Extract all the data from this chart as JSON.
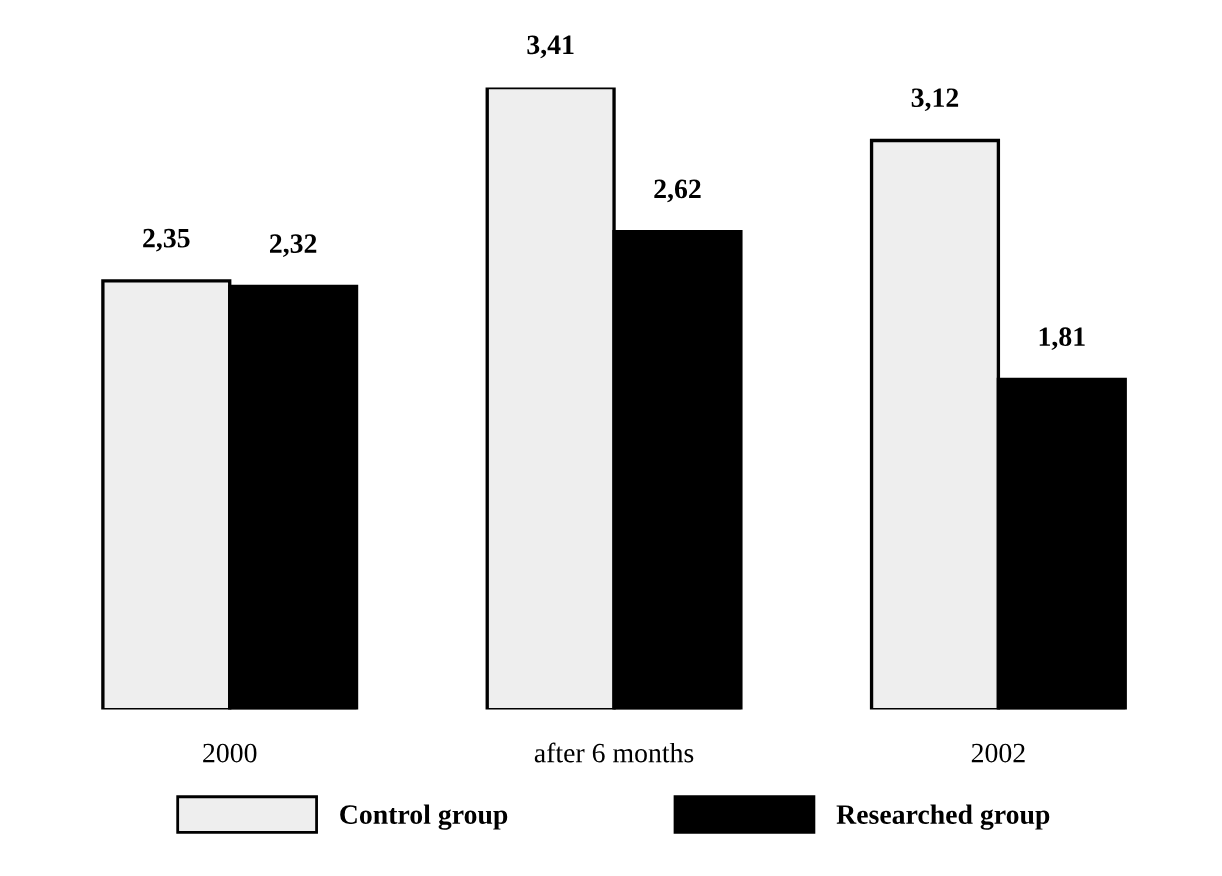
{
  "chart_data": {
    "type": "bar",
    "categories": [
      "2000",
      "after 6 months",
      "2002"
    ],
    "series": [
      {
        "name": "Control group",
        "color": "#eeeeee",
        "values": [
          2.35,
          3.41,
          3.12
        ],
        "value_labels": [
          "2,35",
          "3,41",
          "3,12"
        ]
      },
      {
        "name": "Researched group",
        "color": "#000000",
        "values": [
          2.32,
          2.62,
          1.81
        ],
        "value_labels": [
          "2,32",
          "2,62",
          "1,81"
        ]
      }
    ],
    "ylim": [
      0,
      3.41
    ],
    "legend": "bottom",
    "grid": false
  }
}
